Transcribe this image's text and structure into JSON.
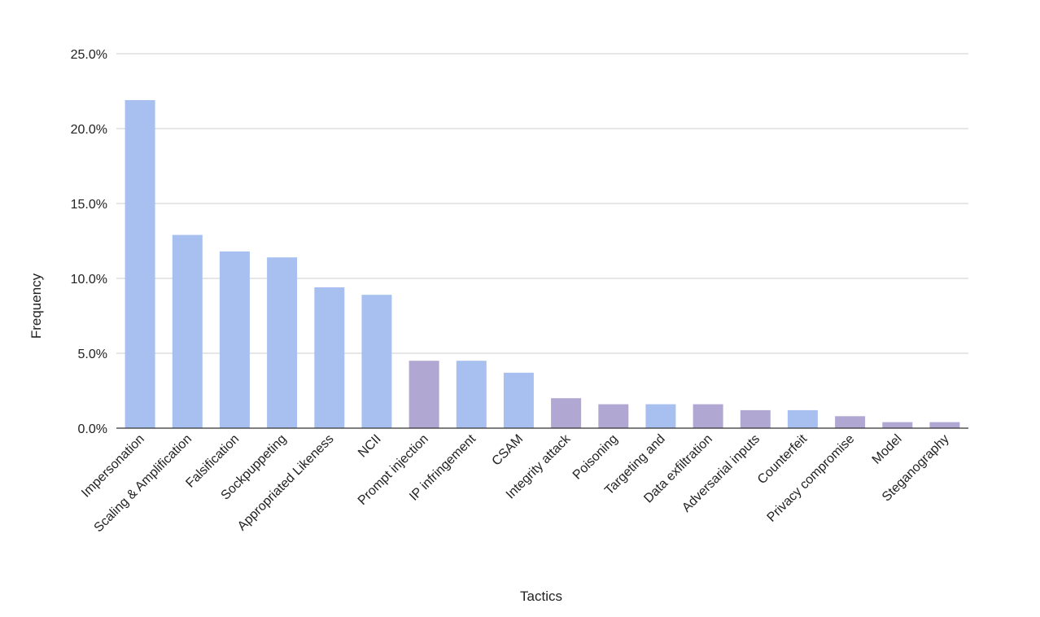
{
  "chart_data": {
    "type": "bar",
    "xlabel": "Tactics",
    "ylabel": "Frequency",
    "ylim": [
      0,
      25
    ],
    "yticks": [
      0,
      5,
      10,
      15,
      20,
      25
    ],
    "ytick_labels": [
      "0.0%",
      "5.0%",
      "10.0%",
      "15.0%",
      "20.0%",
      "25.0%"
    ],
    "grid": "horizontal",
    "legend": "none",
    "colors": {
      "blue": "#a8c0ef",
      "purple": "#b1a7d3",
      "gridline": "#cccccc",
      "axis": "#333333"
    },
    "categories": [
      "Impersonation",
      "Scaling & Amplification",
      "Falsification",
      "Sockpuppeting",
      "Appropriated Likeness",
      "NCII",
      "Prompt injection",
      "IP infringement",
      "CSAM",
      "Integrity attack",
      "Poisoning",
      "Targeting and",
      "Data exfiltration",
      "Adversarial inputs",
      "Counterfeit",
      "Privacy compromise",
      "Model",
      "Steganography"
    ],
    "values": [
      21.9,
      12.9,
      11.8,
      11.4,
      9.4,
      8.9,
      4.5,
      4.5,
      3.7,
      2.0,
      1.6,
      1.6,
      1.6,
      1.2,
      1.2,
      0.8,
      0.4,
      0.4
    ],
    "bar_colors": [
      "blue",
      "blue",
      "blue",
      "blue",
      "blue",
      "blue",
      "purple",
      "blue",
      "blue",
      "purple",
      "purple",
      "blue",
      "purple",
      "purple",
      "blue",
      "purple",
      "purple",
      "purple"
    ]
  }
}
